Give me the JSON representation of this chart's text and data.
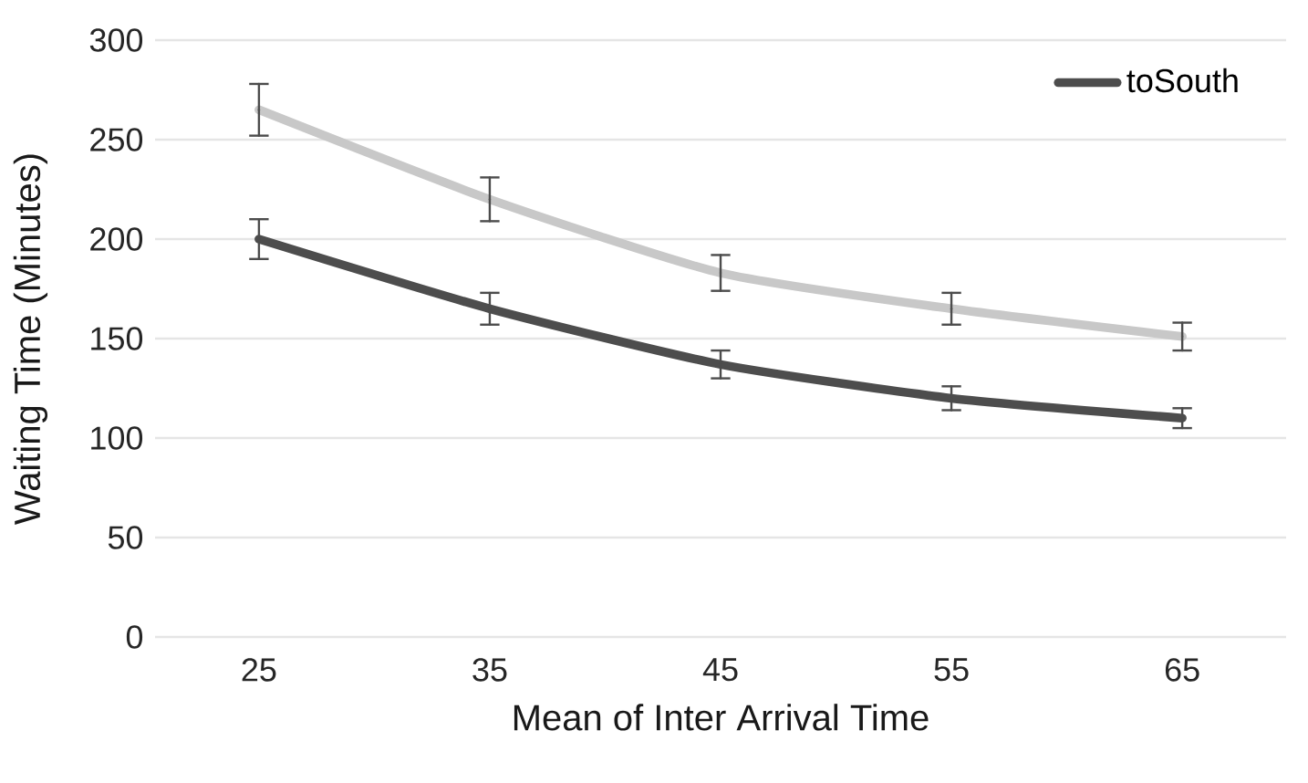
{
  "chart_data": {
    "type": "line",
    "xlabel": "Mean of Inter Arrival Time",
    "ylabel": "Waiting Time (Minutes)",
    "categories": [
      "25",
      "35",
      "45",
      "55",
      "65"
    ],
    "series": [
      {
        "name": "toSouth",
        "color": "#4d4d4d",
        "values": [
          200,
          165,
          137,
          120,
          110
        ],
        "errors": [
          10,
          8,
          7,
          6,
          5
        ]
      },
      {
        "color": "#c8c8c8",
        "values": [
          265,
          220,
          183,
          165,
          151
        ],
        "errors": [
          13,
          11,
          9,
          8,
          7
        ]
      }
    ],
    "ylim": [
      0,
      300
    ],
    "yticks": [
      0,
      50,
      100,
      150,
      200,
      250,
      300
    ],
    "grid": "y",
    "legend": "top right",
    "marker": "none",
    "line_style": "solid"
  }
}
